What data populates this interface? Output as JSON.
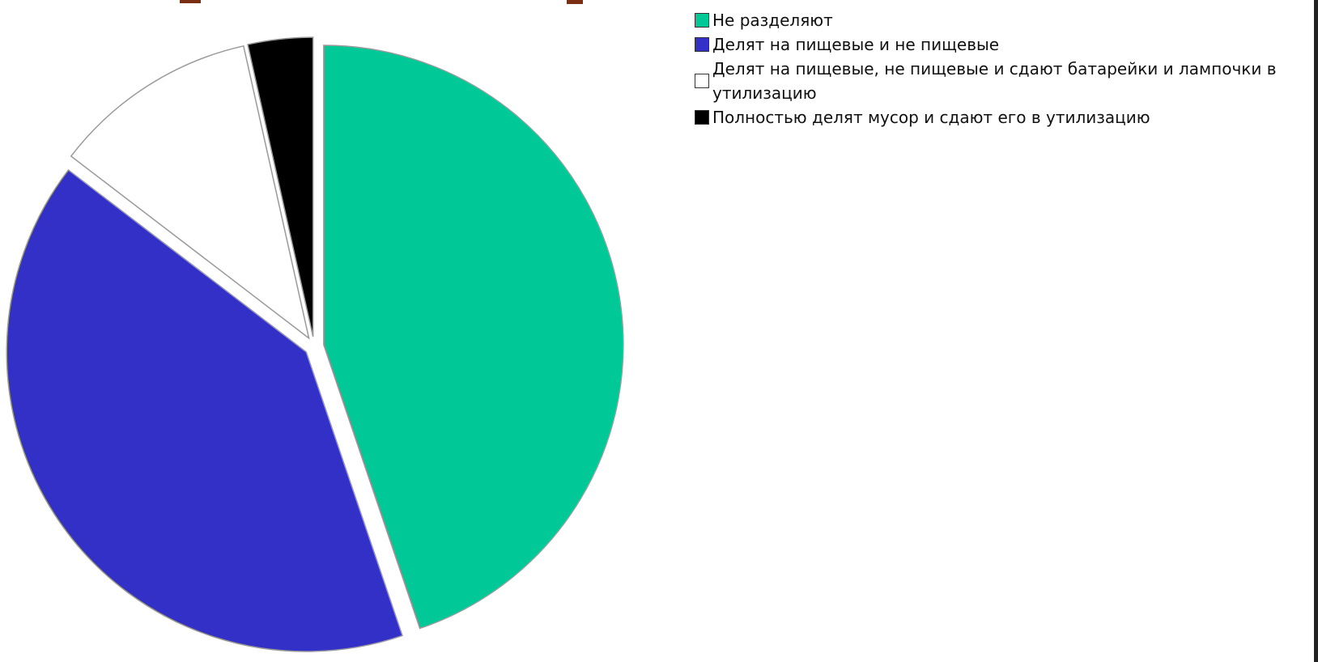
{
  "chart_data": {
    "type": "pie",
    "title": "",
    "categories": [
      "Не разделяют",
      "Делят на пищевые и не пищевые",
      "Делят на пищевые, не пищевые и сдают батарейки и лампочки в утилизацию",
      "Полностью делят мусор и сдают его в утилизацию"
    ],
    "values": [
      44.8,
      40.6,
      11.1,
      3.5
    ],
    "unit": "%",
    "colors": [
      "#00c896",
      "#3330c8",
      "#ffffff",
      "#000000"
    ],
    "exploded": [
      true,
      true,
      true,
      true
    ],
    "start_angle_deg": 0,
    "direction": "clockwise",
    "legend_position": "right-top"
  },
  "legend": {
    "items": [
      {
        "label": "Не разделяют",
        "color": "#00c896"
      },
      {
        "label": "Делят на пищевые и не пищевые",
        "color": "#3330c8"
      },
      {
        "label": "Делят на пищевые, не пищевые и сдают батарейки и лампочки в утилизацию",
        "color": "#ffffff"
      },
      {
        "label": "Полностью делят мусор и сдают его в утилизацию",
        "color": "#000000"
      }
    ]
  },
  "colors": {
    "title_remnant": "#7a2e12",
    "outline": "#9a9a9a",
    "frame_rule": "#222222"
  }
}
